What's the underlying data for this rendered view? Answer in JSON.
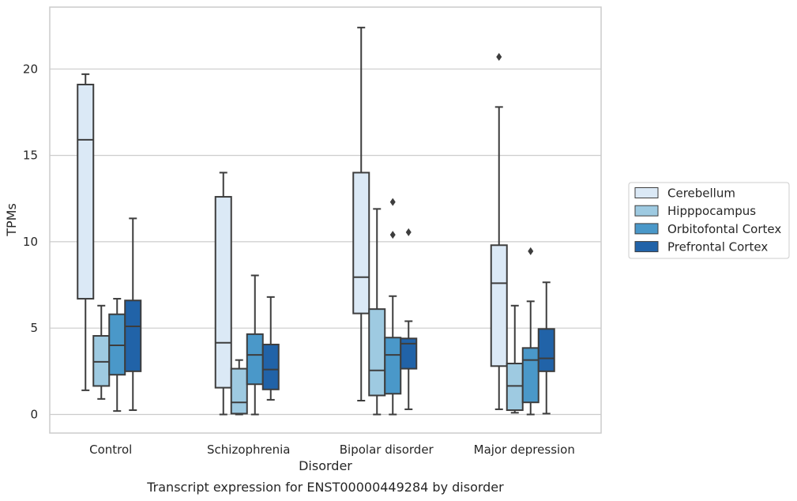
{
  "caption": "Transcript expression for ENST00000449284 by disorder",
  "chart_data": {
    "type": "box",
    "xlabel": "Disorder",
    "ylabel": "TPMs",
    "ylim": [
      -1.1,
      23.5
    ],
    "yticks": [
      0,
      5,
      10,
      15,
      20
    ],
    "grid": "horizontal",
    "legend_position": "right, outside plot",
    "categories": [
      "Control",
      "Schizophrenia",
      "Bipolar disorder",
      "Major depression"
    ],
    "series": [
      {
        "name": "Cerebellum",
        "color": "#dbe9f6",
        "boxes": [
          {
            "whislo": 1.4,
            "q1": 6.7,
            "med": 15.9,
            "q3": 19.1,
            "whishi": 19.7,
            "fliers": []
          },
          {
            "whislo": 0.0,
            "q1": 1.55,
            "med": 4.15,
            "q3": 12.6,
            "whishi": 14.0,
            "fliers": []
          },
          {
            "whislo": 0.8,
            "q1": 5.85,
            "med": 7.95,
            "q3": 14.0,
            "whishi": 22.4,
            "fliers": []
          },
          {
            "whislo": 0.3,
            "q1": 2.8,
            "med": 7.6,
            "q3": 9.8,
            "whishi": 17.8,
            "fliers": [
              20.7
            ]
          }
        ]
      },
      {
        "name": "Hipppocampus",
        "color": "#9ecae1",
        "boxes": [
          {
            "whislo": 0.9,
            "q1": 1.65,
            "med": 3.05,
            "q3": 4.55,
            "whishi": 6.3,
            "fliers": []
          },
          {
            "whislo": 0.0,
            "q1": 0.05,
            "med": 0.7,
            "q3": 2.65,
            "whishi": 3.15,
            "fliers": []
          },
          {
            "whislo": 0.0,
            "q1": 1.1,
            "med": 2.55,
            "q3": 6.1,
            "whishi": 11.9,
            "fliers": []
          },
          {
            "whislo": 0.1,
            "q1": 0.25,
            "med": 1.65,
            "q3": 2.95,
            "whishi": 6.3,
            "fliers": []
          }
        ]
      },
      {
        "name": "Orbitofontal Cortex",
        "color": "#4a98c9",
        "boxes": [
          {
            "whislo": 0.2,
            "q1": 2.3,
            "med": 4.0,
            "q3": 5.8,
            "whishi": 6.7,
            "fliers": []
          },
          {
            "whislo": 0.0,
            "q1": 1.75,
            "med": 3.45,
            "q3": 4.65,
            "whishi": 8.05,
            "fliers": []
          },
          {
            "whislo": 0.0,
            "q1": 1.2,
            "med": 3.45,
            "q3": 4.45,
            "whishi": 6.85,
            "fliers": [
              12.3,
              10.4
            ]
          },
          {
            "whislo": 0.0,
            "q1": 0.7,
            "med": 3.15,
            "q3": 3.85,
            "whishi": 6.55,
            "fliers": [
              9.45
            ]
          }
        ]
      },
      {
        "name": "Prefrontal Cortex",
        "color": "#2163a8",
        "boxes": [
          {
            "whislo": 0.25,
            "q1": 2.5,
            "med": 5.1,
            "q3": 6.6,
            "whishi": 11.35,
            "fliers": []
          },
          {
            "whislo": 0.85,
            "q1": 1.45,
            "med": 2.6,
            "q3": 4.05,
            "whishi": 6.8,
            "fliers": []
          },
          {
            "whislo": 0.3,
            "q1": 2.65,
            "med": 4.1,
            "q3": 4.4,
            "whishi": 5.4,
            "fliers": [
              10.55
            ]
          },
          {
            "whislo": 0.05,
            "q1": 2.5,
            "med": 3.25,
            "q3": 4.95,
            "whishi": 7.65,
            "fliers": []
          }
        ]
      }
    ]
  }
}
